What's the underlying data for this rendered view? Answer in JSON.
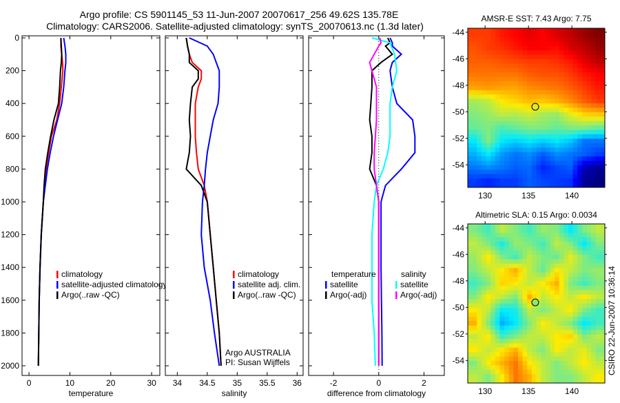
{
  "header": {
    "title_line1": "Argo profile: CS 5901145_53 11-Jun-2007 20070617_256 49.62S 135.78E",
    "title_line2": "Climatology: CARS2006. Satellite-adjusted climatology: synTS_20070613.nc (1.3d later)"
  },
  "credit": "CSIRO 22-Jun-2007 10:36:14",
  "colors": {
    "climatology": "#ff0000",
    "satellite": "#0000ff",
    "argo": "#000000",
    "sal_satellite": "#00ffff",
    "sal_argo": "#ff00ff"
  },
  "chart_data": [
    {
      "type": "line",
      "xlabel": "temperature",
      "xlim": [
        -1.7,
        32
      ],
      "xticks": [
        "0",
        "10",
        "20",
        "30"
      ],
      "xtick_values": [
        0,
        10,
        20,
        30
      ],
      "ylim": [
        0,
        2050
      ],
      "yticks": [
        "0",
        "200",
        "400",
        "600",
        "800",
        "1000",
        "1200",
        "1400",
        "1600",
        "1800",
        "2000"
      ],
      "ytick_values": [
        0,
        200,
        400,
        600,
        800,
        1000,
        1200,
        1400,
        1600,
        1800,
        2000
      ],
      "y": [
        0,
        50,
        100,
        150,
        200,
        300,
        400,
        500,
        600,
        700,
        800,
        900,
        1000,
        1200,
        1400,
        1600,
        1800,
        2000
      ],
      "series": [
        {
          "name": "climatology",
          "color": "#ff0000",
          "values": [
            7.8,
            7.8,
            8.0,
            8.2,
            8.3,
            7.9,
            7.5,
            6.8,
            5.5,
            4.8,
            4.2,
            3.8,
            3.5,
            3.0,
            2.7,
            2.5,
            2.4,
            2.3
          ]
        },
        {
          "name": "satellite-adjusted climatology",
          "color": "#0000ff",
          "values": [
            8.5,
            8.8,
            9.0,
            9.0,
            8.8,
            8.5,
            8.0,
            7.0,
            6.0,
            5.2,
            4.5,
            4.0,
            3.5,
            3.0,
            2.7,
            2.5,
            2.4,
            2.3
          ]
        },
        {
          "name": "Argo(..raw -QC)",
          "color": "#000000",
          "values": [
            7.8,
            7.9,
            8.0,
            7.9,
            7.7,
            7.5,
            7.2,
            6.1,
            5.3,
            4.6,
            4.0,
            3.7,
            3.5,
            3.0,
            2.7,
            2.5,
            2.4,
            2.3
          ]
        }
      ],
      "legend": [
        "climatology",
        "satellite-adjusted climatology",
        "Argo(..raw -QC)"
      ]
    },
    {
      "type": "line",
      "xlabel": "salinity",
      "xlim": [
        33.8,
        36.1
      ],
      "xticks": [
        "34",
        "34.5",
        "35",
        "35.5",
        "36"
      ],
      "xtick_values": [
        34,
        34.5,
        35,
        35.5,
        36
      ],
      "y": [
        0,
        50,
        100,
        150,
        200,
        250,
        300,
        400,
        500,
        600,
        700,
        800,
        900,
        1000,
        1200,
        1400,
        1600,
        1800,
        2000
      ],
      "series": [
        {
          "name": "climatology",
          "color": "#ff0000",
          "values": [
            34.15,
            34.17,
            34.2,
            34.25,
            34.4,
            34.4,
            34.35,
            34.3,
            34.3,
            34.3,
            34.32,
            34.35,
            34.45,
            34.5,
            34.55,
            34.6,
            34.65,
            34.7,
            34.73
          ]
        },
        {
          "name": "satellite adj. clim.",
          "color": "#0000ff",
          "values": [
            34.2,
            34.5,
            34.6,
            34.65,
            34.7,
            34.7,
            34.7,
            34.68,
            34.6,
            34.55,
            34.5,
            34.47,
            34.45,
            34.42,
            34.4,
            34.45,
            34.55,
            34.62,
            34.7
          ]
        },
        {
          "name": "Argo(..raw -QC)",
          "color": "#000000",
          "values": [
            34.15,
            34.17,
            34.2,
            34.2,
            34.35,
            34.35,
            34.25,
            34.22,
            34.2,
            34.22,
            34.2,
            34.15,
            34.4,
            34.5,
            34.55,
            34.6,
            34.65,
            34.7,
            34.73
          ]
        }
      ],
      "legend": [
        "climatology",
        "satellite adj. clim.",
        "Argo(..raw -QC)"
      ],
      "annotation": [
        "Argo AUSTRALIA",
        "PI: Susan Wijffels"
      ]
    },
    {
      "type": "line",
      "xlabel": "difference from climatology",
      "xlim": [
        -3.1,
        2.9
      ],
      "xticks": [
        "-2",
        "0",
        "2"
      ],
      "xtick_values": [
        -2,
        0,
        2
      ],
      "y": [
        0,
        30,
        50,
        100,
        150,
        200,
        300,
        400,
        500,
        600,
        700,
        800,
        900,
        1000,
        1200,
        1400,
        1600,
        1800,
        2000
      ],
      "series": [
        {
          "name": "temperature satellite",
          "color": "#0000ff",
          "values": [
            0.5,
            0.6,
            0.6,
            1.0,
            0.6,
            0.5,
            0.6,
            0.8,
            1.5,
            1.6,
            1.6,
            1.0,
            0.3,
            0.1,
            0.1,
            0.1,
            0.12,
            0.14,
            0.15
          ]
        },
        {
          "name": "temperature Argo(-adj)",
          "color": "#000000",
          "values": [
            0.4,
            0.5,
            0.3,
            0.6,
            0.1,
            -0.3,
            -0.3,
            -0.35,
            -0.4,
            -0.3,
            -0.3,
            -0.4,
            -0.1,
            0.0,
            0.0,
            0.0,
            0.0,
            0.0,
            0.0
          ]
        },
        {
          "name": "salinity satellite",
          "color": "#00ffff",
          "values": [
            -0.3,
            0.5,
            0.55,
            0.7,
            0.75,
            0.8,
            0.6,
            0.5,
            0.5,
            0.5,
            0.4,
            0.2,
            -0.1,
            -0.2,
            -0.3,
            -0.3,
            -0.3,
            -0.2,
            -0.15
          ]
        },
        {
          "name": "salinity Argo(-adj)",
          "color": "#ff00ff",
          "values": [
            0.05,
            0.1,
            0.0,
            -0.2,
            -0.4,
            -0.3,
            -0.1,
            -0.1,
            -0.1,
            -0.15,
            -0.2,
            -0.2,
            -0.1,
            0.0,
            0.0,
            0.0,
            0.0,
            0.0,
            0.0
          ]
        }
      ],
      "legend_headers": [
        "temperature",
        "salinity"
      ],
      "legend": [
        "satellite",
        "Argo(-adj)",
        "satellite",
        "Argo(-adj)"
      ]
    },
    {
      "type": "heatmap",
      "title": "AMSR-E SST: 7.43 Argo: 7.75",
      "xlim": [
        128,
        143.8
      ],
      "ylim": [
        -55.7,
        -43.7
      ],
      "xticks": [
        "130",
        "135",
        "140"
      ],
      "xtick_values": [
        130,
        135,
        140
      ],
      "yticks": [
        "-44",
        "-46",
        "-48",
        "-50",
        "-52",
        "-54"
      ],
      "ytick_values": [
        -44,
        -46,
        -48,
        -50,
        -52,
        -54
      ],
      "crange": [
        3,
        11
      ],
      "argo_position": {
        "lon": 135.78,
        "lat": -49.62,
        "value": 7.75
      },
      "grid": [
        [
          9.5,
          9.5,
          9.8,
          10,
          10.2,
          10,
          10.3,
          10.5,
          10.8,
          11
        ],
        [
          9.3,
          9.5,
          9.6,
          9.8,
          10,
          10,
          9.9,
          10.3,
          10.5,
          10.8
        ],
        [
          9.2,
          9.2,
          9.3,
          9.4,
          9.5,
          9.5,
          9.6,
          9.8,
          10.2,
          10.5
        ],
        [
          9,
          9,
          9,
          9,
          9.2,
          9.3,
          9.3,
          9.5,
          9.8,
          10
        ],
        [
          8.6,
          8.7,
          8.6,
          8.6,
          8.8,
          8.9,
          9,
          9.2,
          9.5,
          9.8
        ],
        [
          7.3,
          7.5,
          8,
          8.2,
          8.4,
          8.3,
          8.5,
          8.8,
          9.2,
          9.5
        ],
        [
          7,
          7.2,
          7.5,
          7.4,
          7.6,
          7.3,
          7.2,
          7.8,
          8.2,
          8.3
        ],
        [
          6.8,
          7,
          6.6,
          6.8,
          7,
          7,
          6.8,
          7,
          7,
          6.8
        ],
        [
          6,
          7,
          6,
          5.8,
          6,
          5.8,
          6,
          5.7,
          5,
          5
        ],
        [
          5.5,
          6,
          5.3,
          5,
          5.2,
          4.8,
          5.2,
          5,
          4.8,
          4.5
        ],
        [
          5,
          5.2,
          5,
          4.8,
          4.9,
          4.3,
          4.6,
          4.8,
          3.5,
          3.2
        ],
        [
          4.5,
          4.3,
          4.5,
          4.5,
          4.8,
          4.6,
          4.5,
          4.4,
          3.2,
          3
        ]
      ]
    },
    {
      "type": "heatmap",
      "title": "Altimetric SLA: 0.15 Argo: 0.0034",
      "xlim": [
        128,
        143.8
      ],
      "ylim": [
        -55.7,
        -43.7
      ],
      "xticks": [
        "130",
        "135",
        "140"
      ],
      "xtick_values": [
        130,
        135,
        140
      ],
      "yticks": [
        "-44",
        "-46",
        "-48",
        "-50",
        "-52",
        "-54"
      ],
      "ytick_values": [
        -44,
        -46,
        -48,
        -50,
        -52,
        -54
      ],
      "crange": [
        -0.4,
        0.4
      ],
      "argo_position": {
        "lon": 135.78,
        "lat": -49.62,
        "value": 0.0034
      },
      "grid": [
        [
          0.0,
          -0.05,
          0.05,
          0.0,
          -0.05,
          0.02,
          0.0,
          -0.1,
          0.0,
          0.05
        ],
        [
          0.05,
          0.0,
          -0.08,
          0.02,
          0.0,
          -0.05,
          0.05,
          0.0,
          -0.1,
          0.0
        ],
        [
          0.02,
          0.1,
          0.0,
          -0.05,
          0.05,
          0.0,
          -0.02,
          0.08,
          0.0,
          -0.05
        ],
        [
          0.0,
          0.05,
          0.1,
          0.15,
          0.05,
          -0.02,
          0.1,
          0.05,
          0.0,
          0.02
        ],
        [
          -0.05,
          0.0,
          0.12,
          0.1,
          0.05,
          0.1,
          0.15,
          0.0,
          -0.05,
          0.0
        ],
        [
          0.0,
          0.1,
          0.05,
          0.0,
          0.15,
          0.05,
          0.1,
          0.05,
          0.1,
          0.05
        ],
        [
          0.1,
          0.05,
          -0.1,
          -0.08,
          0.05,
          0.0,
          0.05,
          0.1,
          0.0,
          -0.05
        ],
        [
          0.15,
          0.0,
          -0.15,
          -0.1,
          0.0,
          0.1,
          0.05,
          0.0,
          -0.1,
          -0.05
        ],
        [
          0.05,
          0.1,
          -0.05,
          0.0,
          0.05,
          0.05,
          0.1,
          0.12,
          0.0,
          0.05
        ],
        [
          0.1,
          0.05,
          0.1,
          0.15,
          0.05,
          0.0,
          0.1,
          0.05,
          0.08,
          0.0
        ],
        [
          0.0,
          0.1,
          0.15,
          0.2,
          0.1,
          0.05,
          0.0,
          0.05,
          0.1,
          0.05
        ],
        [
          0.05,
          0.0,
          0.1,
          0.2,
          0.15,
          0.05,
          0.0,
          0.0,
          0.05,
          0.1
        ]
      ]
    }
  ]
}
